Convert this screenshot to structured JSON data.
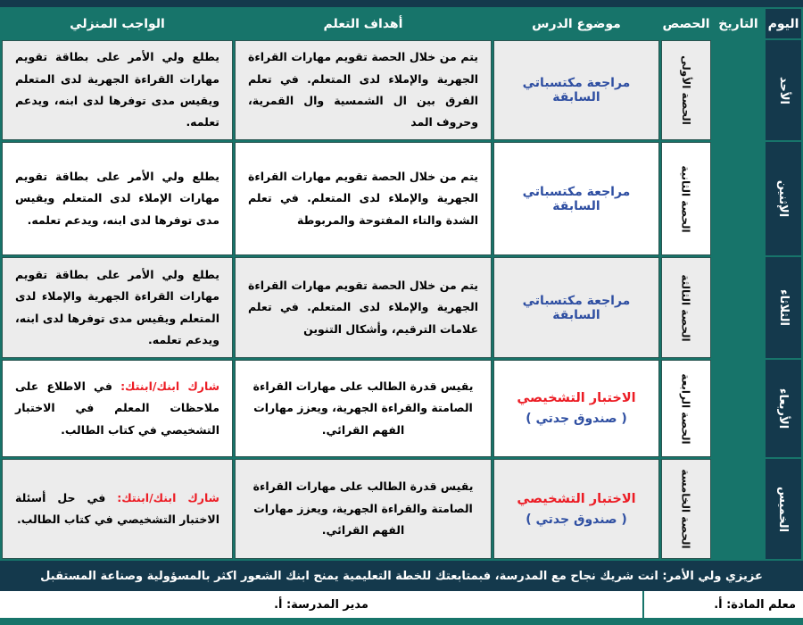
{
  "header": {
    "day": "اليوم",
    "date": "التاريخ",
    "periods": "الحصص",
    "topic": "موضوع الدرس",
    "objectives": "أهداف التعلم",
    "homework": "الواجب المنزلي"
  },
  "rows": [
    {
      "day": "الأحد",
      "date": "",
      "period": "الحصة الأولى",
      "topic_main": "مراجعة مكتسباتي السابقة",
      "objectives": "يتم من خلال الحصة تقويم مهارات القراءة الجهرية والإملاء لدى المتعلم. في تعلم الفرق بين ال الشمسية وال القمرية، وحروف المد",
      "homework": "يطلع ولي الأمر على بطاقة تقويم مهارات القراءة الجهرية لدى المتعلم ويقيس مدى توفرها لدى ابنه، ويدعم تعلمه."
    },
    {
      "day": "الإثنين",
      "date": "",
      "period": "الحصة الثانية",
      "topic_main": "مراجعة مكتسباتي السابقة",
      "objectives": "يتم من خلال الحصة تقويم مهارات القراءة الجهرية والإملاء لدى المتعلم. في تعلم الشدة والتاء المفتوحة والمربوطة",
      "homework": "يطلع ولي الأمر على بطاقة تقويم مهارات الإملاء لدى المتعلم ويقيس مدى توفرها لدى ابنه، ويدعم تعلمه."
    },
    {
      "day": "الثلاثاء",
      "date": "",
      "period": "الحصة الثالثة",
      "topic_main": "مراجعة مكتسباتي السابقة",
      "objectives": "يتم من خلال الحصة تقويم مهارات القراءة الجهرية والإملاء لدى المتعلم. في تعلم علامات الترقيم، وأشكال التنوين",
      "homework": "يطلع ولي الأمر على بطاقة تقويم مهارات القراءة الجهرية والإملاء لدى المتعلم ويقيس مدى توفرها لدى ابنه، ويدعم تعلمه."
    },
    {
      "day": "الأربعاء",
      "date": "",
      "period": "الحصة الرابعة",
      "topic_main": "الاختبار التشخيصي",
      "topic_sub": "( صندوق جدتي )",
      "objectives": "يقيس قدرة الطالب على مهارات القراءة الصامتة والقراءة الجهرية، ويعزز مهارات الفهم القرائي.",
      "homework_prefix": "شارك ابنك/ابنتك:",
      "homework": "في الاطلاع على ملاحظات المعلم في الاختبار التشخيصي في كتاب الطالب."
    },
    {
      "day": "الخميس",
      "date": "",
      "period": "الحصة الخامسة",
      "topic_main": "الاختبار التشخيصي",
      "topic_sub": "( صندوق جدتي )",
      "objectives": "يقيس قدرة الطالب على مهارات القراءة الصامتة والقراءة الجهرية، ويعزز مهارات الفهم القرائي.",
      "homework_prefix": "شارك ابنك/ابنتك:",
      "homework": "في حل أسئلة الاختبار التشخيصي في كتاب الطالب."
    }
  ],
  "footer": {
    "message": "عزيزي ولي الأمر: انت شريك نجاح مع المدرسة، فبمتابعتك للخطة التعليمية يمنح ابنك الشعور اكثر بالمسؤولية وصناعة المستقبل",
    "teacher": "معلم المادة: أ.",
    "principal": "مدير المدرسة: أ."
  },
  "colors": {
    "teal": "#17746A",
    "navy": "#14394C",
    "row_alt_gray": "#ECECEC",
    "topic_blue": "#2F4FA2",
    "accent_red": "#EC1C24"
  }
}
